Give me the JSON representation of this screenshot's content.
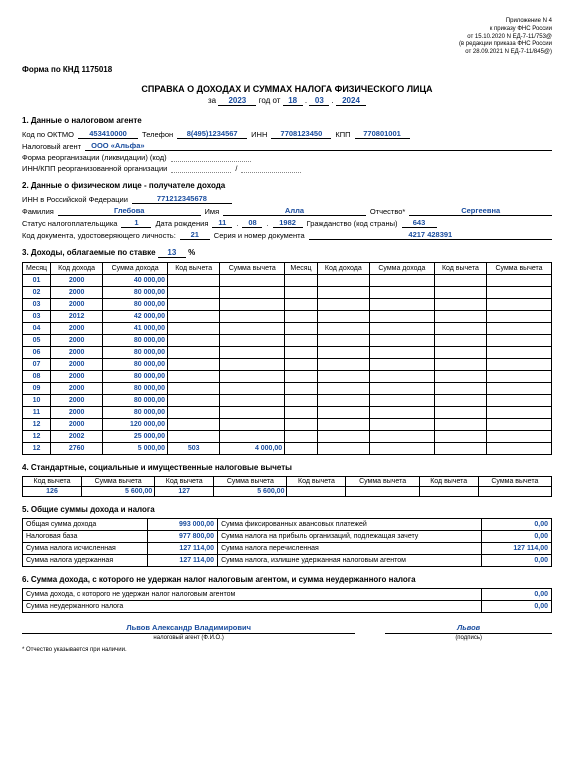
{
  "top_right": {
    "l1": "Приложение N 4",
    "l2": "к приказу ФНС России",
    "l3": "от 15.10.2020 N ЕД-7-11/753@",
    "l4": "(в редакции приказа ФНС России",
    "l5": "от 28.09.2021 N ЕД-7-11/845@)"
  },
  "form_code": "Форма по КНД 1175018",
  "title": "СПРАВКА О ДОХОДАХ И СУММАХ НАЛОГА ФИЗИЧЕСКОГО ЛИЦА",
  "sub": {
    "za": "за",
    "year": "2023",
    "god_ot": "год  от",
    "d": "18",
    "m": "03",
    "y": "2024"
  },
  "s1": {
    "h": "1. Данные о налоговом агенте",
    "oktmo_l": "Код по ОКТМО",
    "oktmo": "453410000",
    "tel_l": "Телефон",
    "tel": "8(495)1234567",
    "inn_l": "ИНН",
    "inn": "7708123450",
    "kpp_l": "КПП",
    "kpp": "770801001",
    "agent_l": "Налоговый агент",
    "agent": "ООО «Альфа»",
    "reorg_l": "Форма реорганизации (ликвидации) (код)",
    "reorg_inn_l": "ИНН/КПП реорганизованной организации"
  },
  "s2": {
    "h": "2. Данные о физическом лице - получателе дохода",
    "inn_l": "ИНН в Российской Федерации",
    "inn": "771212345678",
    "fam_l": "Фамилия",
    "fam": "Глебова",
    "name_l": "Имя",
    "name": "Алла",
    "patr_l": "Отчество*",
    "patr": "Сергеевна",
    "status_l": "Статус налогоплательщика",
    "status": "1",
    "dob_l": "Дата рождения",
    "dob_d": "11",
    "dob_m": "08",
    "dob_y": "1982",
    "citiz_l": "Гражданство (код страны)",
    "citiz": "643",
    "doc_l": "Код документа, удостоверяющего личность:",
    "doc": "21",
    "ser_l": "Серия и номер документа",
    "ser": "4217 428391"
  },
  "s3": {
    "h_pre": "3. Доходы, облагаемые по ставке",
    "rate": "13",
    "pct": "%",
    "cols": [
      "Месяц",
      "Код дохода",
      "Сумма дохода",
      "Код вычета",
      "Сумма вычета",
      "Месяц",
      "Код дохода",
      "Сумма дохода",
      "Код вычета",
      "Сумма вычета"
    ],
    "rows": [
      [
        "01",
        "2000",
        "40 000,00",
        "",
        "",
        "",
        "",
        "",
        "",
        ""
      ],
      [
        "02",
        "2000",
        "80 000,00",
        "",
        "",
        "",
        "",
        "",
        "",
        ""
      ],
      [
        "03",
        "2000",
        "80 000,00",
        "",
        "",
        "",
        "",
        "",
        "",
        ""
      ],
      [
        "03",
        "2012",
        "42 000,00",
        "",
        "",
        "",
        "",
        "",
        "",
        ""
      ],
      [
        "04",
        "2000",
        "41 000,00",
        "",
        "",
        "",
        "",
        "",
        "",
        ""
      ],
      [
        "05",
        "2000",
        "80 000,00",
        "",
        "",
        "",
        "",
        "",
        "",
        ""
      ],
      [
        "06",
        "2000",
        "80 000,00",
        "",
        "",
        "",
        "",
        "",
        "",
        ""
      ],
      [
        "07",
        "2000",
        "80 000,00",
        "",
        "",
        "",
        "",
        "",
        "",
        ""
      ],
      [
        "08",
        "2000",
        "80 000,00",
        "",
        "",
        "",
        "",
        "",
        "",
        ""
      ],
      [
        "09",
        "2000",
        "80 000,00",
        "",
        "",
        "",
        "",
        "",
        "",
        ""
      ],
      [
        "10",
        "2000",
        "80 000,00",
        "",
        "",
        "",
        "",
        "",
        "",
        ""
      ],
      [
        "11",
        "2000",
        "80 000,00",
        "",
        "",
        "",
        "",
        "",
        "",
        ""
      ],
      [
        "12",
        "2000",
        "120 000,00",
        "",
        "",
        "",
        "",
        "",
        "",
        ""
      ],
      [
        "12",
        "2002",
        "25 000,00",
        "",
        "",
        "",
        "",
        "",
        "",
        ""
      ],
      [
        "12",
        "2760",
        "5 000,00",
        "503",
        "4 000,00",
        "",
        "",
        "",
        "",
        ""
      ]
    ]
  },
  "s4": {
    "h": "4. Стандартные, социальные и имущественные налоговые вычеты",
    "cols": [
      "Код вычета",
      "Сумма вычета",
      "Код вычета",
      "Сумма вычета",
      "Код вычета",
      "Сумма вычета",
      "Код вычета",
      "Сумма вычета"
    ],
    "row": [
      "126",
      "5 600,00",
      "127",
      "5 600,00",
      "",
      "",
      "",
      ""
    ]
  },
  "s5": {
    "h": "5. Общие суммы дохода и налога",
    "r": [
      [
        "Общая сумма дохода",
        "993 000,00",
        "Сумма фиксированных авансовых платежей",
        "0,00"
      ],
      [
        "Налоговая база",
        "977 800,00",
        "Сумма налога на прибыль организаций, подлежащая зачету",
        "0,00"
      ],
      [
        "Сумма налога исчисленная",
        "127 114,00",
        "Сумма налога перечисленная",
        "127 114,00"
      ],
      [
        "Сумма налога удержанная",
        "127 114,00",
        "Сумма налога, излишне удержанная налоговым агентом",
        "0,00"
      ]
    ]
  },
  "s6": {
    "h": "6. Сумма дохода, с которого не удержан налог налоговым агентом, и сумма неудержанного налога",
    "r1_l": "Сумма дохода, с которого не удержан налог налоговым агентом",
    "r1_v": "0,00",
    "r2_l": "Сумма неудержанного налога",
    "r2_v": "0,00"
  },
  "sign": {
    "name": "Львов Александр Владимирович",
    "name_cap": "налоговый агент (Ф.И.О.)",
    "sig": "Львов",
    "sig_cap": "(подпись)"
  },
  "footnote": "* Отчество указывается при наличии."
}
